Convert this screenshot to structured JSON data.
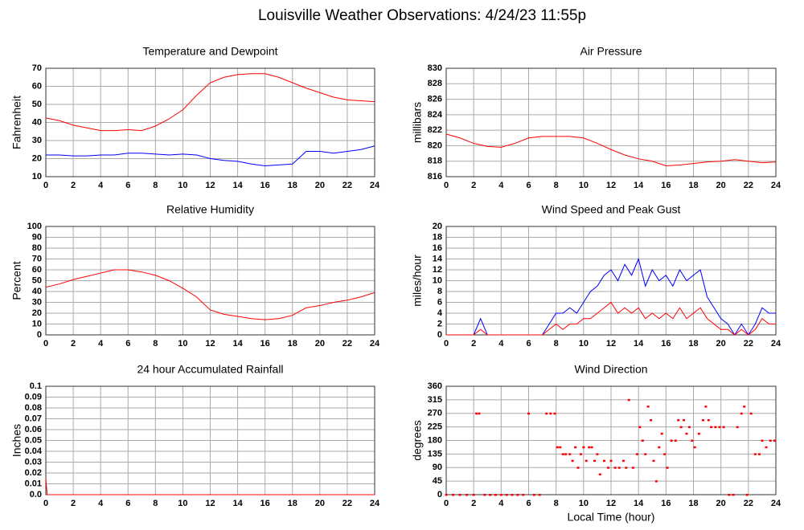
{
  "title": "Louisville Weather Observations: 4/24/23 11:55p",
  "chart_data": [
    {
      "type": "line",
      "title": "Temperature and Dewpoint",
      "ylabel": "Fahrenheit",
      "x": [
        0,
        1,
        2,
        3,
        4,
        5,
        6,
        7,
        8,
        9,
        10,
        11,
        12,
        13,
        14,
        15,
        16,
        17,
        18,
        19,
        20,
        21,
        22,
        23,
        24
      ],
      "series": [
        {
          "color": "#ff0000",
          "values": [
            42.5,
            41,
            38.5,
            37,
            35.5,
            35.5,
            36,
            35.5,
            38,
            42,
            47,
            55,
            62,
            65,
            66.5,
            67,
            67,
            65,
            62,
            59,
            56.5,
            54,
            52.5,
            52,
            51.5
          ]
        },
        {
          "color": "#0000ff",
          "values": [
            22,
            22,
            21.5,
            21.5,
            22,
            22,
            23,
            23,
            22.5,
            22,
            22.5,
            22,
            20,
            19,
            18.5,
            17,
            16,
            16.5,
            17,
            24,
            24,
            23,
            24,
            25,
            27
          ]
        }
      ],
      "xlim": [
        0,
        24
      ],
      "xticks": [
        0,
        2,
        4,
        6,
        8,
        10,
        12,
        14,
        16,
        18,
        20,
        22,
        24
      ],
      "ylim": [
        10,
        70
      ],
      "yticks": [
        10,
        20,
        30,
        40,
        50,
        60,
        70
      ],
      "grid": true
    },
    {
      "type": "line",
      "title": "Air Pressure",
      "ylabel": "millibars",
      "x": [
        0,
        1,
        2,
        3,
        4,
        5,
        6,
        7,
        8,
        9,
        10,
        11,
        12,
        13,
        14,
        15,
        16,
        17,
        18,
        19,
        20,
        21,
        22,
        23,
        24
      ],
      "series": [
        {
          "color": "#ff0000",
          "values": [
            821.5,
            821,
            820.3,
            819.9,
            819.8,
            820.3,
            821,
            821.2,
            821.2,
            821.2,
            821,
            820.3,
            819.5,
            818.8,
            818.3,
            818,
            817.4,
            817.5,
            817.7,
            817.9,
            818,
            818.2,
            818,
            817.8,
            817.9
          ]
        }
      ],
      "xlim": [
        0,
        24
      ],
      "xticks": [
        0,
        2,
        4,
        6,
        8,
        10,
        12,
        14,
        16,
        18,
        20,
        22,
        24
      ],
      "ylim": [
        816,
        830
      ],
      "yticks": [
        816,
        818,
        820,
        822,
        824,
        826,
        828,
        830
      ],
      "grid": true
    },
    {
      "type": "line",
      "title": "Relative Humidity",
      "ylabel": "Percent",
      "x": [
        0,
        1,
        2,
        3,
        4,
        5,
        6,
        7,
        8,
        9,
        10,
        11,
        12,
        13,
        14,
        15,
        16,
        17,
        18,
        19,
        20,
        21,
        22,
        23,
        24
      ],
      "series": [
        {
          "color": "#ff0000",
          "values": [
            44,
            47,
            51,
            54,
            57,
            60,
            60,
            58,
            55,
            50,
            43,
            35,
            23,
            19,
            17,
            15,
            14,
            15,
            18,
            25,
            27,
            30,
            32,
            35,
            39
          ]
        }
      ],
      "xlim": [
        0,
        24
      ],
      "xticks": [
        0,
        2,
        4,
        6,
        8,
        10,
        12,
        14,
        16,
        18,
        20,
        22,
        24
      ],
      "ylim": [
        0,
        100
      ],
      "yticks": [
        0,
        10,
        20,
        30,
        40,
        50,
        60,
        70,
        80,
        90,
        100
      ],
      "grid": true
    },
    {
      "type": "line",
      "title": "Wind Speed and Peak Gust",
      "ylabel": "miles/hour",
      "x": [
        0,
        0.5,
        1,
        1.5,
        2,
        2.5,
        3,
        3.5,
        4,
        4.5,
        5,
        5.5,
        6,
        6.5,
        7,
        7.5,
        8,
        8.5,
        9,
        9.5,
        10,
        10.5,
        11,
        11.5,
        12,
        12.5,
        13,
        13.5,
        14,
        14.5,
        15,
        15.5,
        16,
        16.5,
        17,
        17.5,
        18,
        18.5,
        19,
        19.5,
        20,
        20.5,
        21,
        21.5,
        22,
        22.5,
        23,
        23.5,
        24
      ],
      "series": [
        {
          "color": "#0000ff",
          "values": [
            0,
            0,
            0,
            0,
            0,
            3,
            0,
            0,
            0,
            0,
            0,
            0,
            0,
            0,
            0,
            2,
            4,
            4,
            5,
            4,
            6,
            8,
            9,
            11,
            12,
            10,
            13,
            11,
            14,
            9,
            12,
            10,
            11,
            9,
            12,
            10,
            11,
            12,
            7,
            5,
            3,
            2,
            0,
            2,
            0,
            2,
            5,
            4,
            4
          ]
        },
        {
          "color": "#ff0000",
          "values": [
            0,
            0,
            0,
            0,
            0,
            1,
            0,
            0,
            0,
            0,
            0,
            0,
            0,
            0,
            0,
            1,
            2,
            1,
            2,
            2,
            3,
            3,
            4,
            5,
            6,
            4,
            5,
            4,
            5,
            3,
            4,
            3,
            4,
            3,
            5,
            3,
            4,
            5,
            3,
            2,
            1,
            1,
            0,
            1,
            0,
            1,
            3,
            2,
            2
          ]
        }
      ],
      "xlim": [
        0,
        24
      ],
      "xticks": [
        0,
        2,
        4,
        6,
        8,
        10,
        12,
        14,
        16,
        18,
        20,
        22,
        24
      ],
      "ylim": [
        0,
        20
      ],
      "yticks": [
        0,
        2,
        4,
        6,
        8,
        10,
        12,
        14,
        16,
        18,
        20
      ],
      "grid": true
    },
    {
      "type": "line",
      "title": "24 hour Accumulated Rainfall",
      "ylabel": "Inches",
      "x": [
        0,
        0.1,
        24
      ],
      "series": [
        {
          "color": "#ff0000",
          "values": [
            0.015,
            0,
            0
          ]
        }
      ],
      "xlim": [
        0,
        24
      ],
      "xticks": [
        0,
        2,
        4,
        6,
        8,
        10,
        12,
        14,
        16,
        18,
        20,
        22,
        24
      ],
      "ylim": [
        0,
        0.1
      ],
      "yticks": [
        {
          "value": 0,
          "label": "0.0"
        },
        0.01,
        0.02,
        0.03,
        0.04,
        0.05,
        0.06,
        0.07,
        0.08,
        0.09,
        0.1
      ],
      "grid": true
    },
    {
      "type": "scatter",
      "title": "Wind Direction",
      "ylabel": "degrees",
      "xlabel": "Local Time (hour)",
      "x": [
        0,
        0.5,
        1,
        1.5,
        2,
        2.2,
        2.4,
        2.8,
        3.2,
        3.6,
        4,
        4.4,
        4.8,
        5.2,
        5.6,
        6,
        6.4,
        6.8,
        7.3,
        7.6,
        7.9,
        8.1,
        8.3,
        8.5,
        8.7,
        9,
        9.2,
        9.4,
        9.6,
        9.8,
        10,
        10.2,
        10.4,
        10.6,
        10.8,
        11,
        11.2,
        11.5,
        11.8,
        12,
        12.3,
        12.6,
        12.9,
        13.1,
        13.3,
        13.6,
        13.9,
        14.1,
        14.3,
        14.5,
        14.7,
        14.9,
        15.1,
        15.3,
        15.5,
        15.7,
        15.9,
        16.1,
        16.4,
        16.7,
        16.9,
        17.1,
        17.3,
        17.5,
        17.7,
        17.9,
        18.1,
        18.4,
        18.7,
        18.9,
        19.1,
        19.3,
        19.6,
        19.9,
        20.2,
        20.6,
        20.9,
        21.2,
        21.5,
        21.7,
        21.9,
        22.2,
        22.5,
        22.8,
        23,
        23.3,
        23.6,
        23.9
      ],
      "series": [
        {
          "color": "#ff0000",
          "values": [
            0,
            0,
            0,
            0,
            0,
            270,
            270,
            0,
            0,
            0,
            0,
            0,
            0,
            0,
            0,
            270,
            0,
            0,
            270,
            270,
            270,
            158,
            158,
            135,
            135,
            135,
            113,
            158,
            90,
            135,
            158,
            113,
            158,
            158,
            113,
            135,
            68,
            113,
            90,
            113,
            90,
            90,
            113,
            90,
            315,
            90,
            135,
            225,
            180,
            135,
            293,
            248,
            113,
            45,
            158,
            203,
            135,
            90,
            180,
            180,
            248,
            225,
            248,
            203,
            225,
            180,
            158,
            203,
            248,
            293,
            248,
            225,
            225,
            225,
            225,
            0,
            0,
            225,
            270,
            293,
            0,
            270,
            135,
            135,
            180,
            158,
            180,
            180
          ]
        }
      ],
      "xlim": [
        0,
        24
      ],
      "xticks": [
        0,
        2,
        4,
        6,
        8,
        10,
        12,
        14,
        16,
        18,
        20,
        22,
        24
      ],
      "ylim": [
        0,
        360
      ],
      "yticks": [
        0,
        45,
        90,
        135,
        180,
        225,
        270,
        315,
        360
      ],
      "grid": true
    }
  ]
}
